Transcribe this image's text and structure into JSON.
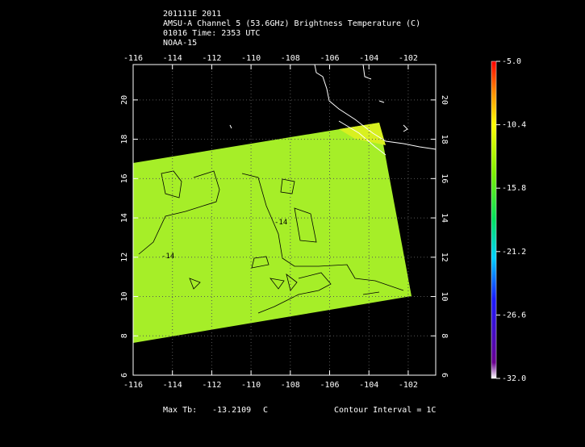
{
  "header": {
    "lines": [
      "201111E 2011",
      "AMSU-A Channel 5 (53.6GHz) Brightness Temperature (C)",
      "01016 Time: 2353 UTC",
      "NOAA-15"
    ]
  },
  "map": {
    "xlim": [
      -116,
      -100.6
    ],
    "ylim": [
      6,
      21.8
    ],
    "xticks": [
      -116,
      -114,
      -112,
      -110,
      -108,
      -106,
      -104,
      -102
    ],
    "yticks": [
      6,
      8,
      10,
      12,
      14,
      16,
      18,
      20
    ],
    "contour_labels": [
      -14,
      -14
    ],
    "grid": true
  },
  "colorbar": {
    "lim": [
      -32,
      -5
    ],
    "ticks": [
      {
        "value": -5,
        "label": "-5.0"
      },
      -10.4,
      -15.8,
      -21.2,
      -26.6,
      {
        "value": -32,
        "label": "-32.0"
      }
    ]
  },
  "footer": {
    "max_label": "Max Tb:",
    "max_value": -13.2109,
    "max_unit": "C",
    "contour_interval": "Contour Interval = 1C"
  }
}
